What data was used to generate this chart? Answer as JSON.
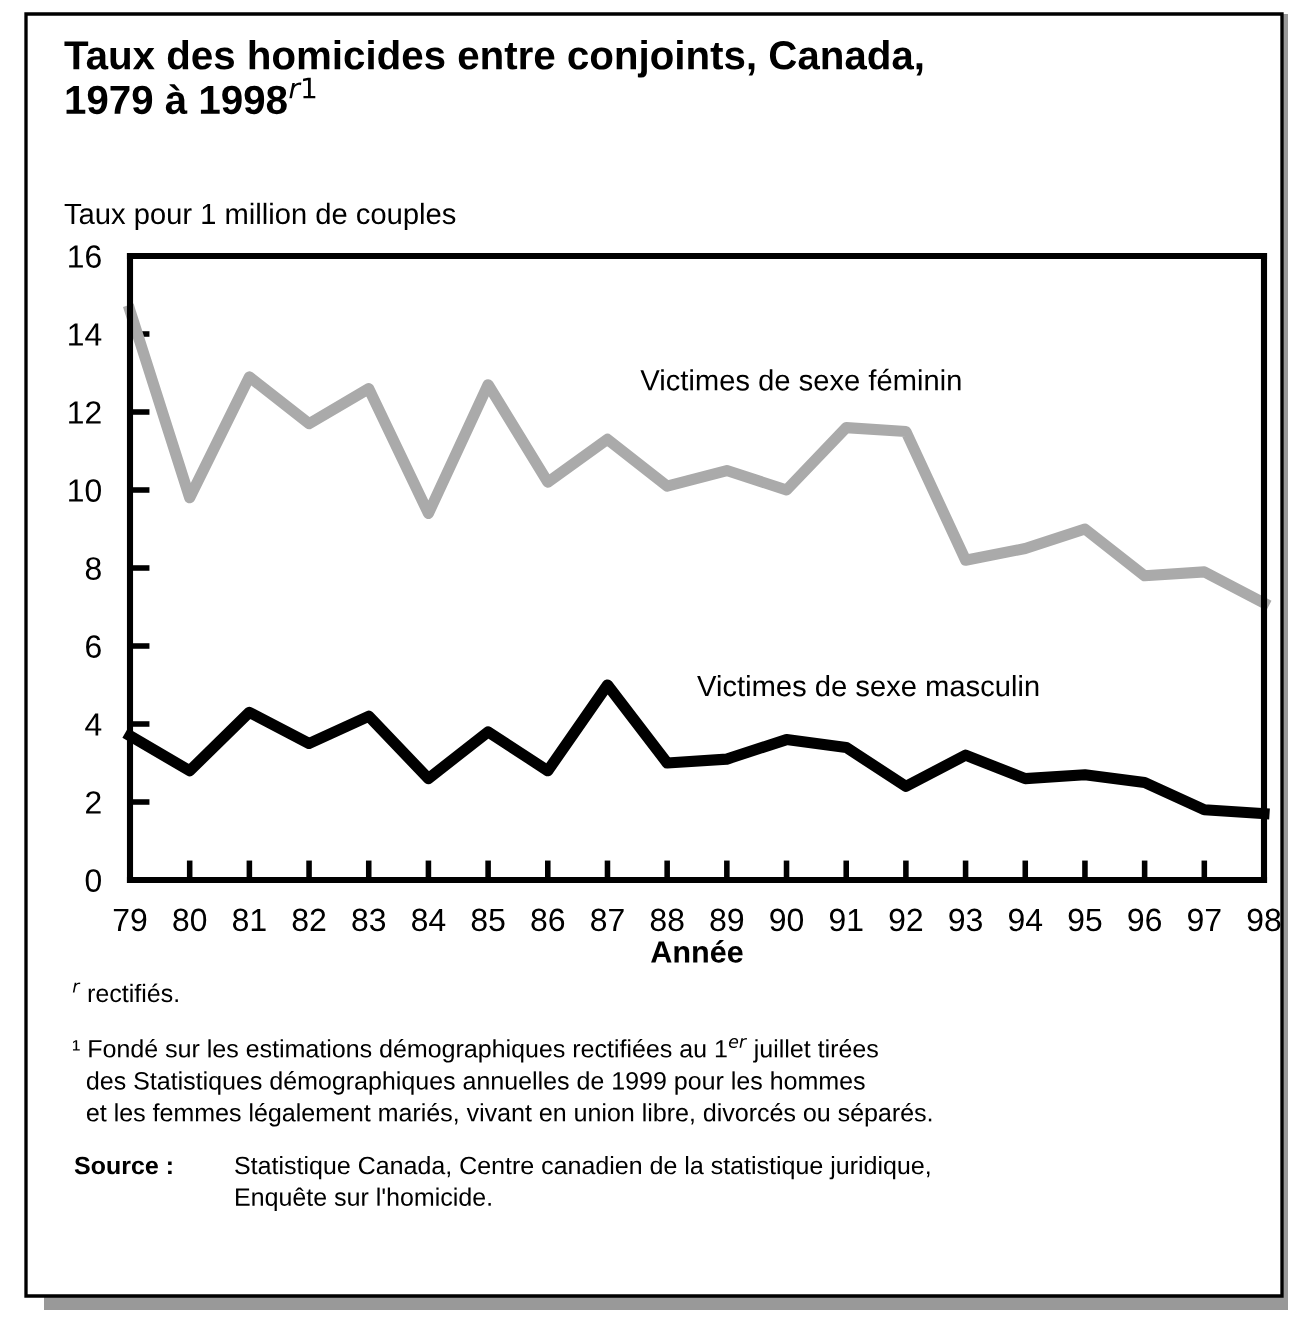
{
  "chart_data": {
    "type": "line",
    "title": "Taux des homicides entre conjoints, Canada,\n1979 à 1998$^{r1}$",
    "ylabel": "Taux pour 1 million de couples",
    "xlabel": "Année",
    "categories": [
      "79",
      "80",
      "81",
      "82",
      "83",
      "84",
      "85",
      "86",
      "87",
      "88",
      "89",
      "90",
      "91",
      "92",
      "93",
      "94",
      "95",
      "96",
      "97",
      "98"
    ],
    "series": [
      {
        "name": "Victimes de sexe féminin",
        "color": "#aaaaaa",
        "values": [
          14.6,
          9.8,
          12.9,
          11.7,
          12.6,
          9.4,
          12.7,
          10.2,
          11.3,
          10.1,
          10.5,
          10.0,
          11.6,
          11.5,
          8.2,
          8.5,
          9.0,
          7.8,
          7.9,
          7.1
        ]
      },
      {
        "name": "Victimes de sexe masculin",
        "color": "#000000",
        "values": [
          3.7,
          2.8,
          4.3,
          3.5,
          4.2,
          2.6,
          3.8,
          2.8,
          5.0,
          3.0,
          3.1,
          3.6,
          3.4,
          2.4,
          3.2,
          2.6,
          2.7,
          2.5,
          1.8,
          1.7
        ]
      }
    ],
    "ylim": [
      0,
      16
    ],
    "yticks": [
      0,
      2,
      4,
      6,
      8,
      10,
      12,
      14,
      16
    ],
    "grid": false,
    "legend": false,
    "marker": "none",
    "line_style": "solid",
    "annotations": [
      "$^{r}$ rectifiés.",
      "¹ Fondé sur les estimations démographiques rectifiées au 1$^{er}$ juillet tirées\n  des Statistiques démographiques annuelles de 1999 pour les hommes\n  et les femmes légalement mariés, vivant en union libre, divorcés ou séparés.",
      "Source :",
      "Statistique Canada, Centre canadien de la statistique juridique,\nEnquête sur l'homicide."
    ]
  }
}
